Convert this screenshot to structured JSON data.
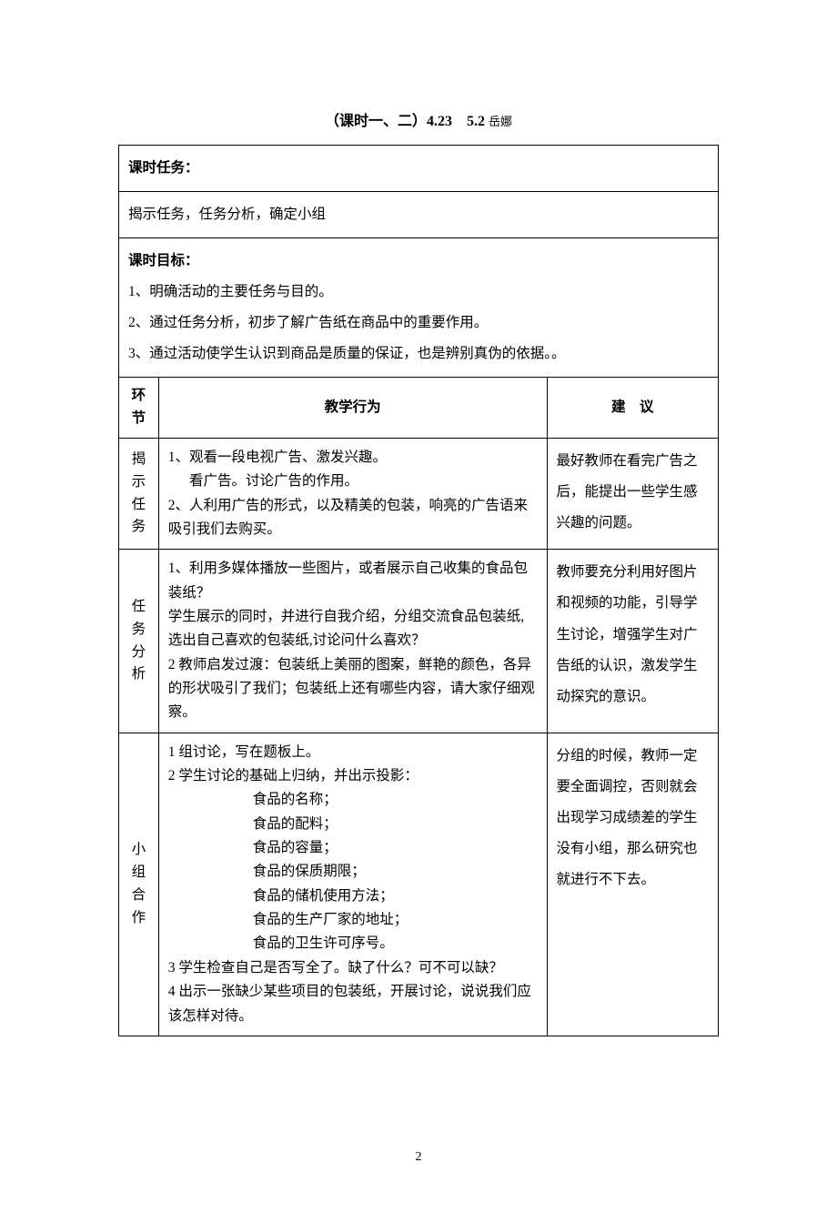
{
  "title": {
    "main": "（课时一、二）4.23　5.2",
    "sub": "岳娜"
  },
  "section1": {
    "header": "课时任务：",
    "content": "揭示任务，任务分析，确定小组"
  },
  "section2": {
    "header": "课时目标：",
    "line1": "1、明确活动的主要任务与目的。",
    "line2": "2、通过任务分析，初步了解广告纸在商品中的重要作用。",
    "line3": "3、通过活动使学生认识到商品是质量的保证，也是辨别真伪的依据。。"
  },
  "tableHeader": {
    "col1_a": "环",
    "col1_b": "节",
    "col2": "教学行为",
    "col3": "建　议"
  },
  "row1": {
    "env_a": "揭",
    "env_b": "示",
    "env_c": "任",
    "env_d": "务",
    "teaching_l1": "1、观看一段电视广告、激发兴趣。",
    "teaching_l2": "看广告。讨论广告的作用。",
    "teaching_l3": "2、人利用广告的形式，以及精美的包装，响亮的广告语来吸引我们去购买。",
    "suggest": "最好教师在看完广告之后，能提出一些学生感兴趣的问题。"
  },
  "row2": {
    "env_a": "任",
    "env_b": "务",
    "env_c": "分",
    "env_d": "析",
    "teaching_l1": "1、利用多媒体播放一些图片，或者展示自己收集的食品包装纸？",
    "teaching_l2": "学生展示的同时，并进行自我介绍，分组交流食品包装纸,选出自己喜欢的包装纸,讨论问什么喜欢？",
    "teaching_l3": "2 教师启发过渡：包装纸上美丽的图案，鲜艳的颜色，各异的形状吸引了我们；包装纸上还有哪些内容，请大家仔细观察。",
    "suggest": "教师要充分利用好图片和视频的功能，引导学生讨论，增强学生对广告纸的认识，激发学生动探究的意识。"
  },
  "row3": {
    "env_a": "小",
    "env_b": "组",
    "env_c": "合",
    "env_d": "作",
    "teaching_l1": "1 组讨论，写在题板上。",
    "teaching_l2": "2 学生讨论的基础上归纳，并出示投影：",
    "teaching_i1": "食品的名称；",
    "teaching_i2": "食品的配料；",
    "teaching_i3": "食品的容量；",
    "teaching_i4": "食品的保质期限；",
    "teaching_i5": "食品的储机使用方法；",
    "teaching_i6": "食品的生产厂家的地址；",
    "teaching_i7": "食品的卫生许可序号。",
    "teaching_l3": "3 学生检查自己是否写全了。缺了什么？可不可以缺？",
    "teaching_l4": "4 出示一张缺少某些项目的包装纸，开展讨论，说说我们应该怎样对待。",
    "suggest": "分组的时候，教师一定要全面调控，否则就会出现学习成绩差的学生没有小组，那么研究也就进行不下去。"
  },
  "pageNum": "2"
}
